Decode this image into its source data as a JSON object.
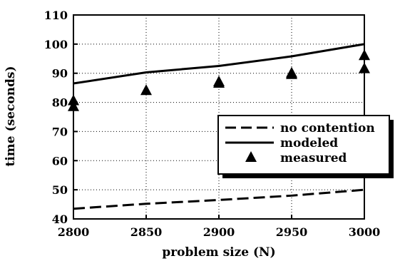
{
  "chart_data": {
    "type": "line",
    "xlabel": "problem size (N)",
    "ylabel": "time (seconds)",
    "xlim": [
      2800,
      3000
    ],
    "ylim": [
      40,
      110
    ],
    "x_ticks": [
      "2800",
      "2850",
      "2900",
      "2950",
      "3000"
    ],
    "y_ticks": [
      "40",
      "50",
      "60",
      "70",
      "80",
      "90",
      "100",
      "110"
    ],
    "grid": "dotted",
    "legend_position": "center-right",
    "series": [
      {
        "name": "no contention",
        "style": "dashed-line",
        "x": [
          2800,
          2850,
          2900,
          2950,
          3000
        ],
        "y": [
          43.5,
          45.2,
          46.5,
          48.0,
          50.0
        ]
      },
      {
        "name": "modeled",
        "style": "solid-line",
        "x": [
          2800,
          2850,
          2900,
          2950,
          3000
        ],
        "y": [
          86.5,
          90.3,
          92.5,
          95.8,
          100.0
        ]
      },
      {
        "name": "measured",
        "style": "triangle-markers",
        "x": [
          2800,
          2800,
          2850,
          2900,
          2900,
          2950,
          2950,
          3000,
          3000
        ],
        "y": [
          80.5,
          78.5,
          84.0,
          87.0,
          86.5,
          90.0,
          89.5,
          96.0,
          91.5
        ]
      }
    ]
  }
}
